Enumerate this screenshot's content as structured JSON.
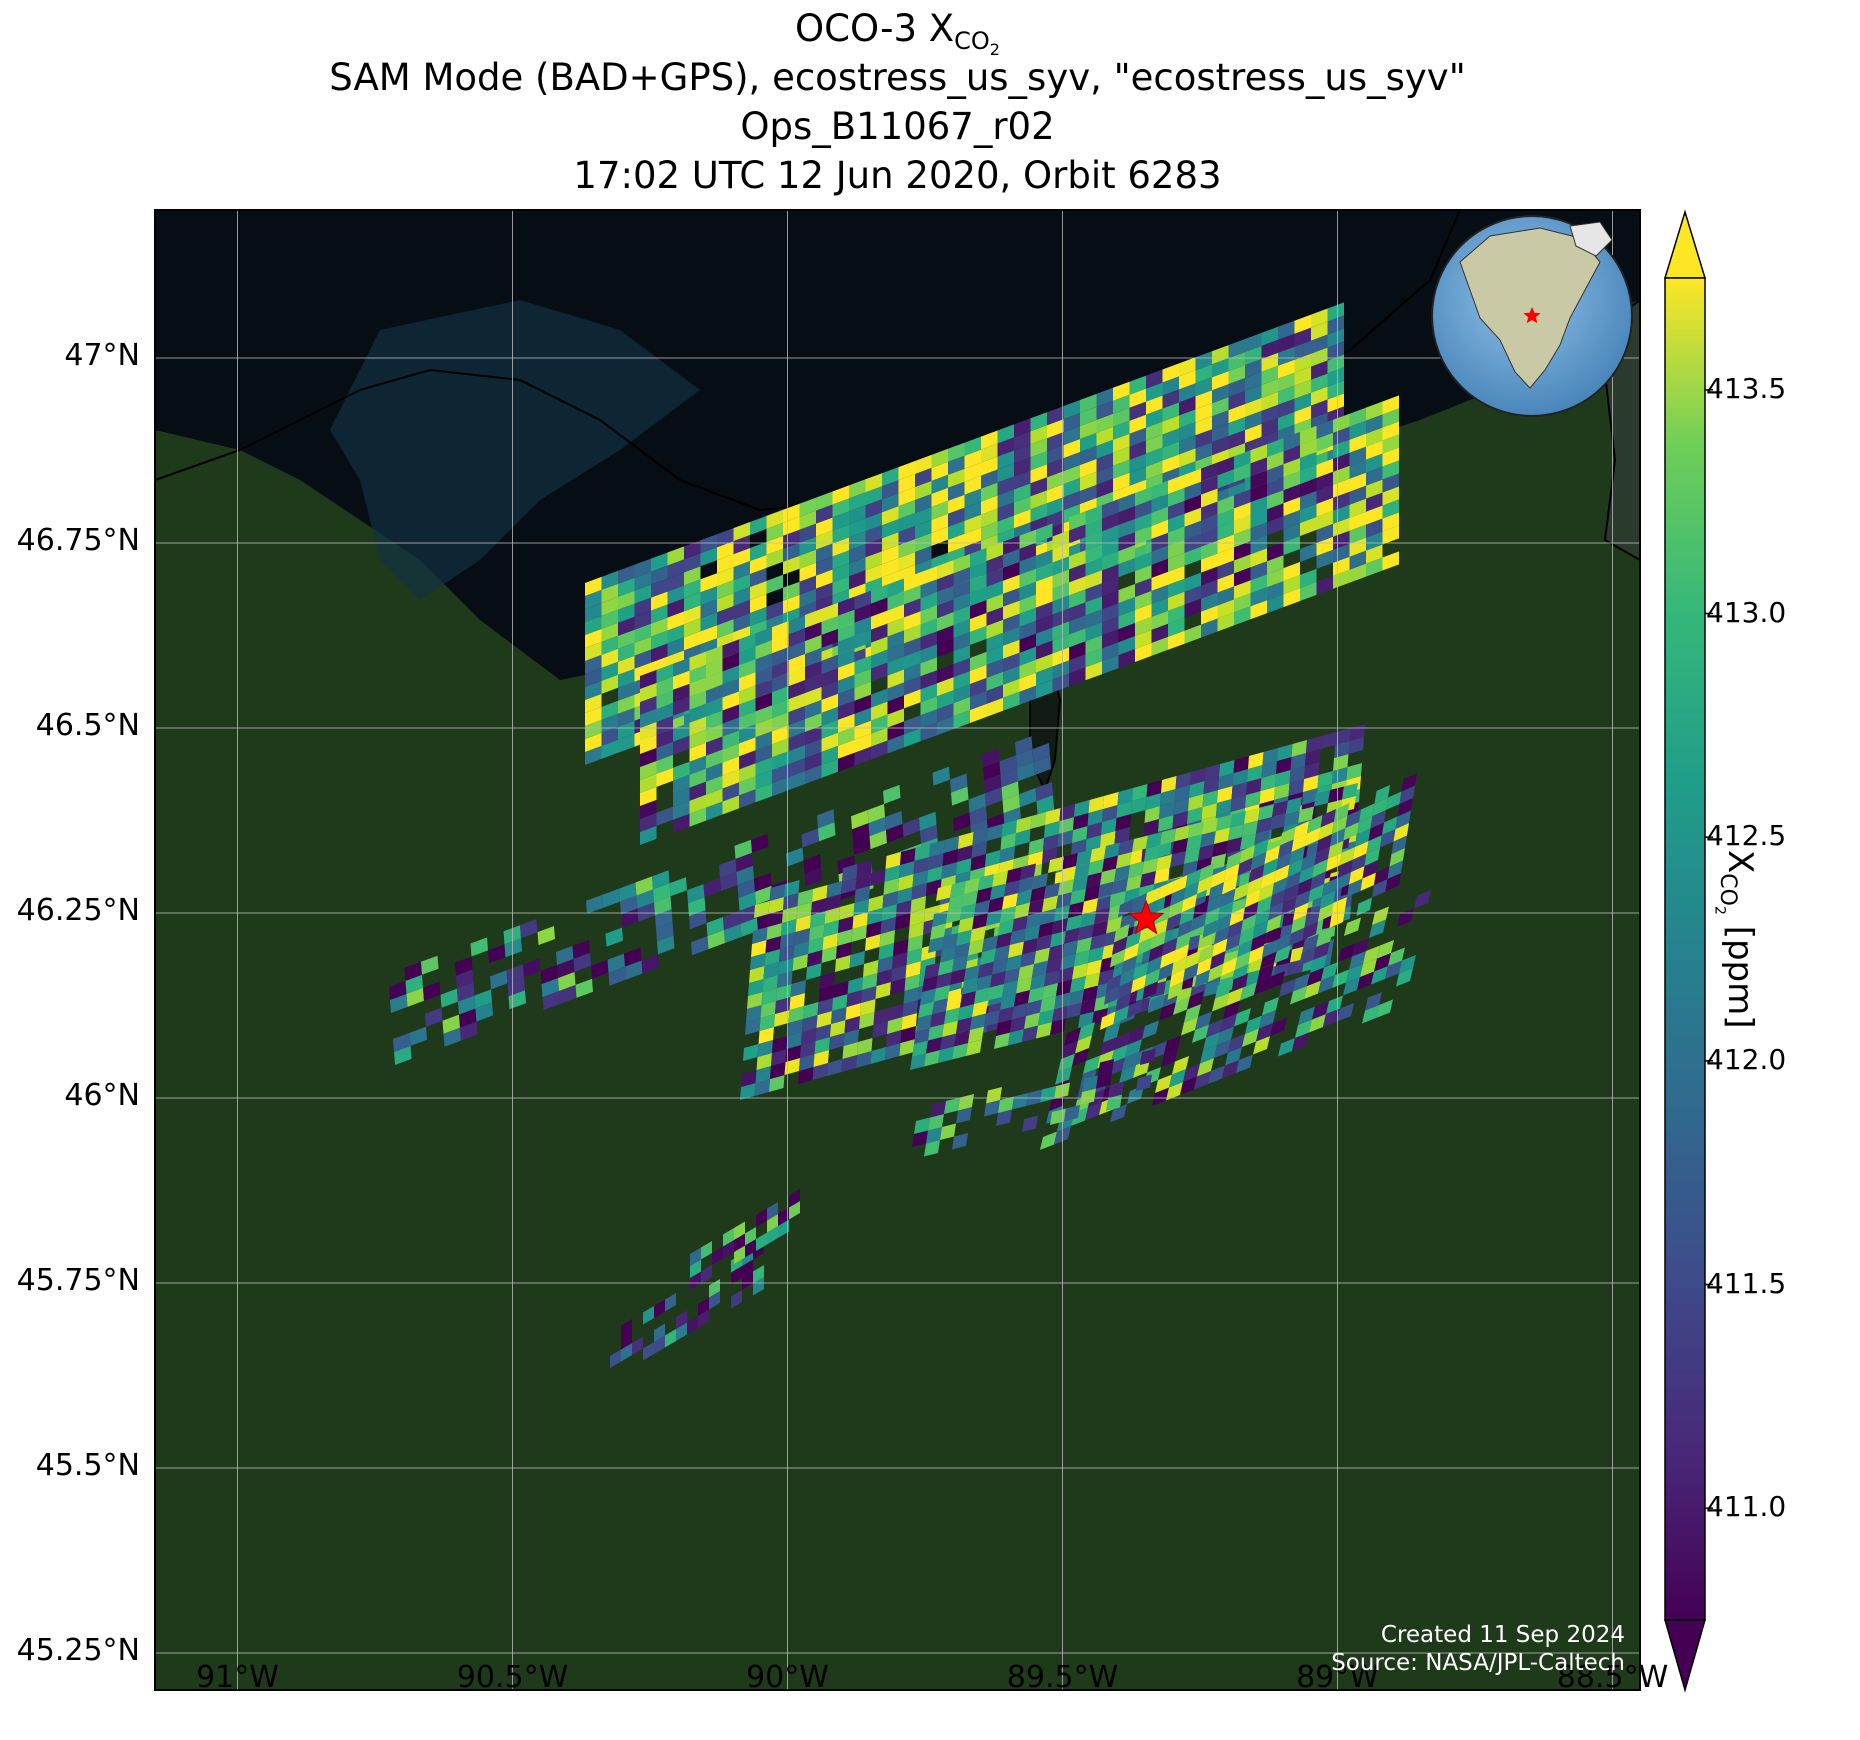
{
  "title": {
    "line1_prefix": "OCO-3 X",
    "line1_sub": "CO",
    "line1_sub2": "2",
    "line2": "SAM Mode (BAD+GPS), ecostress_us_syv, \"ecostress_us_syv\"",
    "line3": "Ops_B11067_r02",
    "line4": "17:02 UTC 12 Jun 2020, Orbit 6283"
  },
  "axes": {
    "y_ticks": [
      "47°N",
      "46.75°N",
      "46.5°N",
      "46.25°N",
      "46°N",
      "45.75°N",
      "45.5°N",
      "45.25°N"
    ],
    "x_ticks": [
      "91°W",
      "90.5°W",
      "90°W",
      "89.5°W",
      "89°W",
      "88.5°W"
    ],
    "lat_range": [
      45.2,
      47.2
    ],
    "lon_range": [
      -91.15,
      -88.45
    ],
    "grid": true
  },
  "colorbar": {
    "colormap": "viridis",
    "range": [
      410.75,
      413.75
    ],
    "ticks": [
      "411.0",
      "411.5",
      "412.0",
      "412.5",
      "413.0",
      "413.5"
    ],
    "label_prefix": "X",
    "label_sub": "CO",
    "label_sub2": "2",
    "label_suffix": " [ppm]",
    "extend": "both"
  },
  "site_marker": {
    "lat": 46.242,
    "lon": -89.348,
    "symbol": "star",
    "color": "#ff0000"
  },
  "credits": {
    "created": "Created 11 Sep 2024",
    "source": "Source: NASA/JPL-Caltech"
  },
  "colors": {
    "land": "#1f3a1a",
    "water": "#060d14",
    "grid": "#bbbbbb",
    "marker": "#ff0000"
  }
}
